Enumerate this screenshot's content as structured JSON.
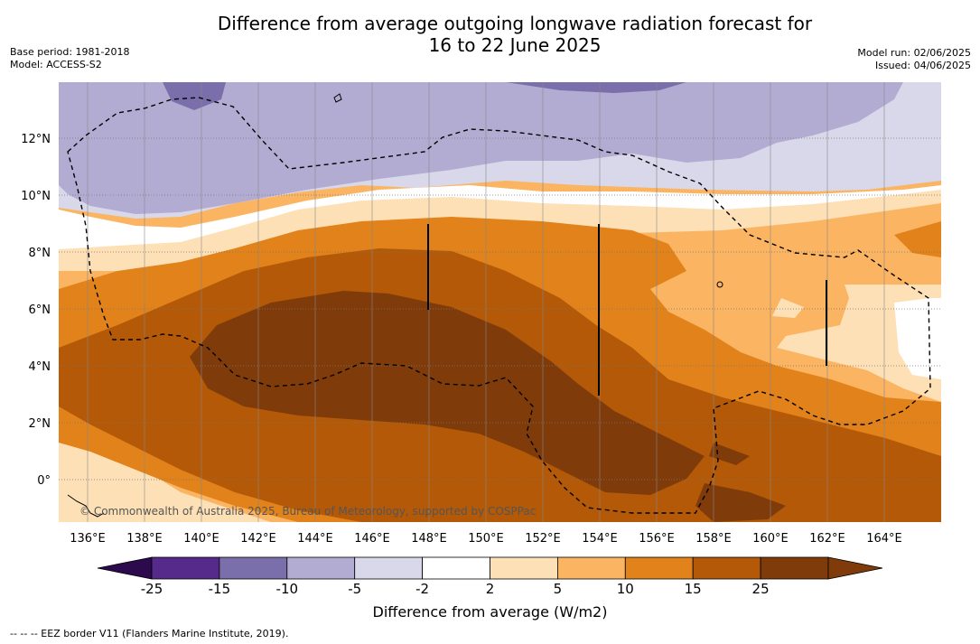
{
  "title_line1": "Difference from average outgoing longwave radiation forecast for",
  "title_line2": "16 to 22 June 2025",
  "base_period": "Base period: 1981-2018",
  "model": "Model: ACCESS-S2",
  "model_run": "Model run: 02/06/2025",
  "issued": "Issued: 04/06/2025",
  "copyright": "© Commonwealth of Australia 2025, Bureau of Meteorology, supported by COSPPac",
  "colorbar_title": "Difference from average (W/m2)",
  "footer": "--  --  -- EEZ border V11 (Flanders Marine Institute, 2019).",
  "lon_labels": [
    "136°E",
    "138°E",
    "140°E",
    "142°E",
    "144°E",
    "146°E",
    "148°E",
    "150°E",
    "152°E",
    "154°E",
    "156°E",
    "158°E",
    "160°E",
    "162°E",
    "164°E"
  ],
  "lat_labels": [
    "12°N",
    "10°N",
    "8°N",
    "6°N",
    "4°N",
    "2°N",
    "0°"
  ],
  "colorbar_ticks": [
    "-25",
    "-15",
    "-10",
    "-5",
    "-2",
    "2",
    "5",
    "10",
    "15",
    "25"
  ],
  "colorbar_colors": [
    "#562a8a",
    "#7b6fab",
    "#b2acd2",
    "#d8d8ea",
    "#ffffff",
    "#fee0b6",
    "#fbb462",
    "#e1821b",
    "#b35907",
    "#7f3c0a"
  ],
  "colorbar_under": "#2d0a4e",
  "colorbar_over": "#7f3c0a"
}
